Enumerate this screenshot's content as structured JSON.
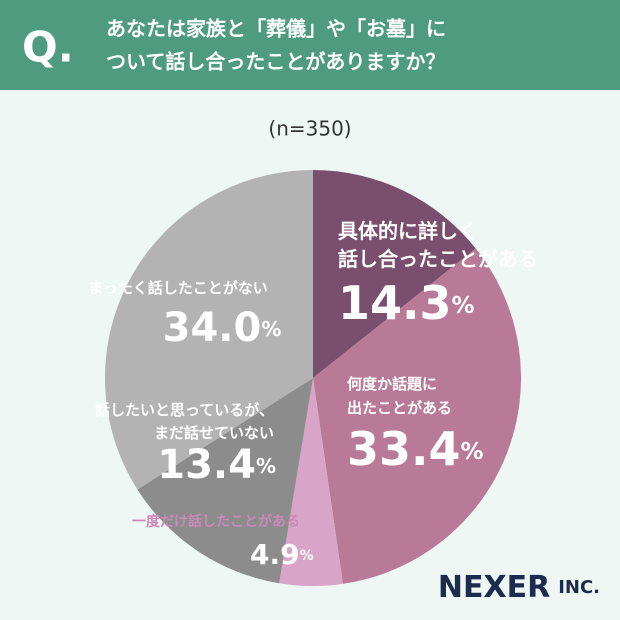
{
  "header": {
    "question_label": "Q.",
    "title": [
      "あなたは家族と「葬儀」や「お墓」に",
      "ついて話し合ったことがありますか？"
    ]
  },
  "chart_data": {
    "type": "pie",
    "subtitle": "(n=350)",
    "categories": [
      "具体的に詳しく\n話し合ったことがある",
      "何度か話題に\n出たことがある",
      "一度だけ話したことがある",
      "話したいと思っているが、\nまだ話せていない",
      "まったく話したことがない"
    ],
    "values": [
      14.3,
      33.4,
      4.9,
      13.4,
      34.0
    ],
    "value_labels": [
      "14.3%",
      "33.4%",
      "4.9%",
      "13.4%",
      "34.0%"
    ],
    "colors": [
      "#7a4f6e",
      "#b87a96",
      "#d8a5c8",
      "#8c8c8c",
      "#b3b3b3"
    ]
  },
  "footer": {
    "brand": "NEXER",
    "suffix": "INC."
  }
}
